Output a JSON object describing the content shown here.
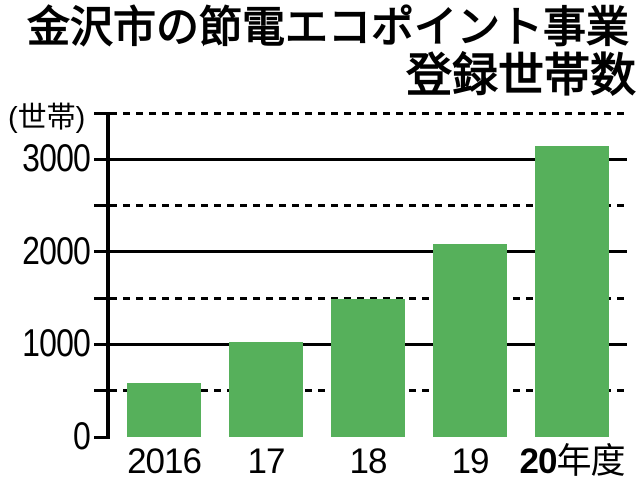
{
  "title": {
    "line1": "金沢市の節電エコポイント事業",
    "line2": "登録世帯数"
  },
  "chart_data": {
    "type": "bar",
    "title": "金沢市の節電エコポイント事業 登録世帯数",
    "unit_label": "(世帯)",
    "ylabel": "世帯",
    "xlabel": "年度",
    "ylim": [
      0,
      3500
    ],
    "ytick_interval": 500,
    "ytick_labels": [
      "0",
      "1000",
      "2000",
      "3000"
    ],
    "solid_gridlines": [
      1000,
      2000,
      3000
    ],
    "dashed_gridlines": [
      500,
      1500,
      2500,
      3500
    ],
    "grid": "on",
    "legend": "none",
    "categories": [
      {
        "text": "2016",
        "bold": false,
        "suffix": ""
      },
      {
        "text": "17",
        "bold": false,
        "suffix": ""
      },
      {
        "text": "18",
        "bold": false,
        "suffix": ""
      },
      {
        "text": "19",
        "bold": false,
        "suffix": ""
      },
      {
        "text": "20",
        "bold": true,
        "suffix": "年度"
      }
    ],
    "values": [
      580,
      1030,
      1490,
      2080,
      3140
    ],
    "bar_color": "#56b05b",
    "axis_color": "#000000",
    "background_color": "#ffffff"
  }
}
